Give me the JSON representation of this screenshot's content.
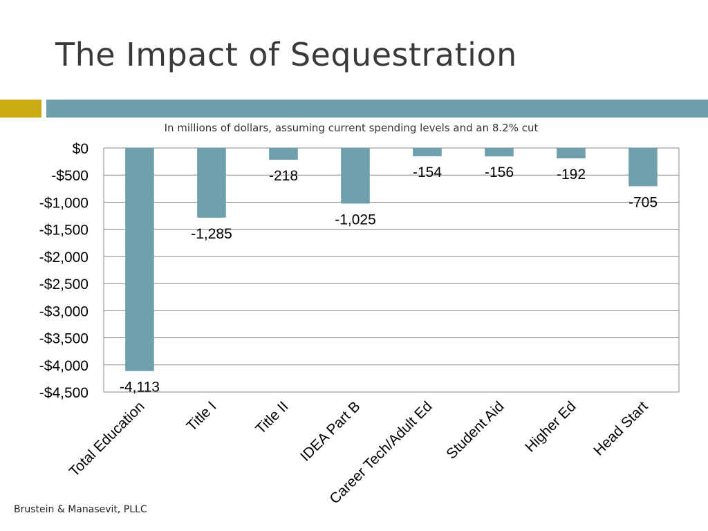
{
  "slide": {
    "title": "The Impact of Sequestration",
    "footer": "Brustein & Manasevit, PLLC"
  },
  "colors": {
    "bar": "#6f9fad",
    "accent_gold": "#c8ac12",
    "accent_teal": "#6d9eab",
    "gridline": "#888888"
  },
  "chart_data": {
    "type": "bar",
    "title": "",
    "subtitle": "In millions of dollars, assuming current spending levels and an 8.2% cut",
    "xlabel": "",
    "ylabel": "",
    "categories": [
      "Total Education",
      "Title I",
      "Title II",
      "IDEA Part B",
      "Career Tech/Adult Ed",
      "Student Aid",
      "Higher Ed",
      "Head Start"
    ],
    "values": [
      -4113,
      -1285,
      -218,
      -1025,
      -154,
      -156,
      -192,
      -705
    ],
    "data_labels": [
      "-4,113",
      "-1,285",
      "-218",
      "-1,025",
      "-154",
      "-156",
      "-192",
      "-705"
    ],
    "ylim": [
      -4500,
      0
    ],
    "yticks": [
      0,
      -500,
      -1000,
      -1500,
      -2000,
      -2500,
      -3000,
      -3500,
      -4000,
      -4500
    ],
    "ytick_labels": [
      "$0",
      "-$500",
      "-$1,000",
      "-$1,500",
      "-$2,000",
      "-$2,500",
      "-$3,000",
      "-$3,500",
      "-$4,000",
      "-$4,500"
    ],
    "grid": true,
    "legend": "none"
  }
}
